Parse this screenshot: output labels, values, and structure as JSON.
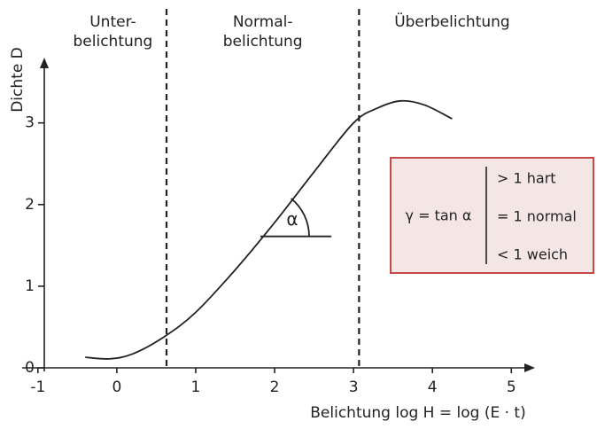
{
  "chart_data": {
    "type": "line",
    "x": [
      -0.4,
      -0.1,
      0.2,
      0.6,
      1.0,
      1.5,
      2.0,
      2.5,
      3.0,
      3.3,
      3.6,
      3.9,
      4.25
    ],
    "values": [
      0.13,
      0.11,
      0.17,
      0.38,
      0.68,
      1.2,
      1.78,
      2.4,
      3.0,
      3.18,
      3.27,
      3.22,
      3.05
    ],
    "color": "#222222",
    "xlim": [
      -1.2,
      5.3
    ],
    "ylim": [
      0,
      3.8
    ],
    "xticks": [
      -1,
      0,
      1,
      2,
      3,
      4,
      5
    ],
    "yticks": [
      0,
      1,
      2,
      3
    ],
    "grid": false,
    "xlabel": "Belichtung log H = log (E · t)",
    "ylabel": "Dichte D",
    "vlines": [
      0.63,
      3.07
    ],
    "regions": [
      {
        "lines": [
          "Unter-",
          "belichtung"
        ],
        "x": -0.05
      },
      {
        "lines": [
          "Normal-",
          "belichtung"
        ],
        "x": 1.85
      },
      {
        "lines": [
          "Überbelichtung"
        ],
        "x": 4.25
      }
    ],
    "angle": {
      "x": [
        1.82,
        2.72
      ],
      "y": 1.61,
      "label": "α"
    },
    "legend_box": {
      "formula": "γ = tan α",
      "items": [
        "> 1 hart",
        "= 1 normal",
        "< 1 weich"
      ]
    }
  }
}
